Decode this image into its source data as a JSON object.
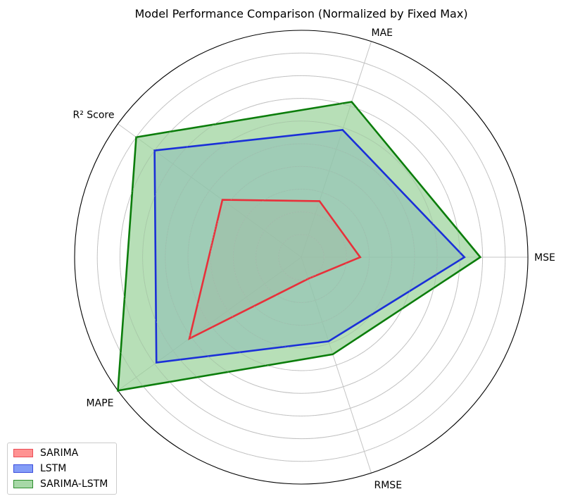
{
  "chart_data": {
    "type": "radar",
    "title": "Model Performance Comparison (Normalized by Fixed Max)",
    "axes": [
      "MSE",
      "MAE",
      "R² Score",
      "MAPE",
      "RMSE"
    ],
    "rlim": [
      0,
      1
    ],
    "rgrid": [
      0.1,
      0.2,
      0.3,
      0.4,
      0.5,
      0.6,
      0.7,
      0.8,
      0.9
    ],
    "grid": true,
    "legend_position": "lower-left",
    "series": [
      {
        "name": "SARIMA",
        "values": [
          0.26,
          0.26,
          0.43,
          0.61,
          0.1
        ],
        "line_color": "#e8303a",
        "fill_color": "#ff7f7f",
        "fill_opacity": 0.5
      },
      {
        "name": "LSTM",
        "values": [
          0.72,
          0.59,
          0.8,
          0.79,
          0.39
        ],
        "line_color": "#1a2fd8",
        "fill_color": "#6f8cf6",
        "fill_opacity": 0.55
      },
      {
        "name": "SARIMA-LSTM",
        "values": [
          0.79,
          0.72,
          0.9,
          1.0,
          0.45
        ],
        "line_color": "#0b7d0b",
        "fill_color": "#98d298",
        "fill_opacity": 0.7
      }
    ]
  }
}
